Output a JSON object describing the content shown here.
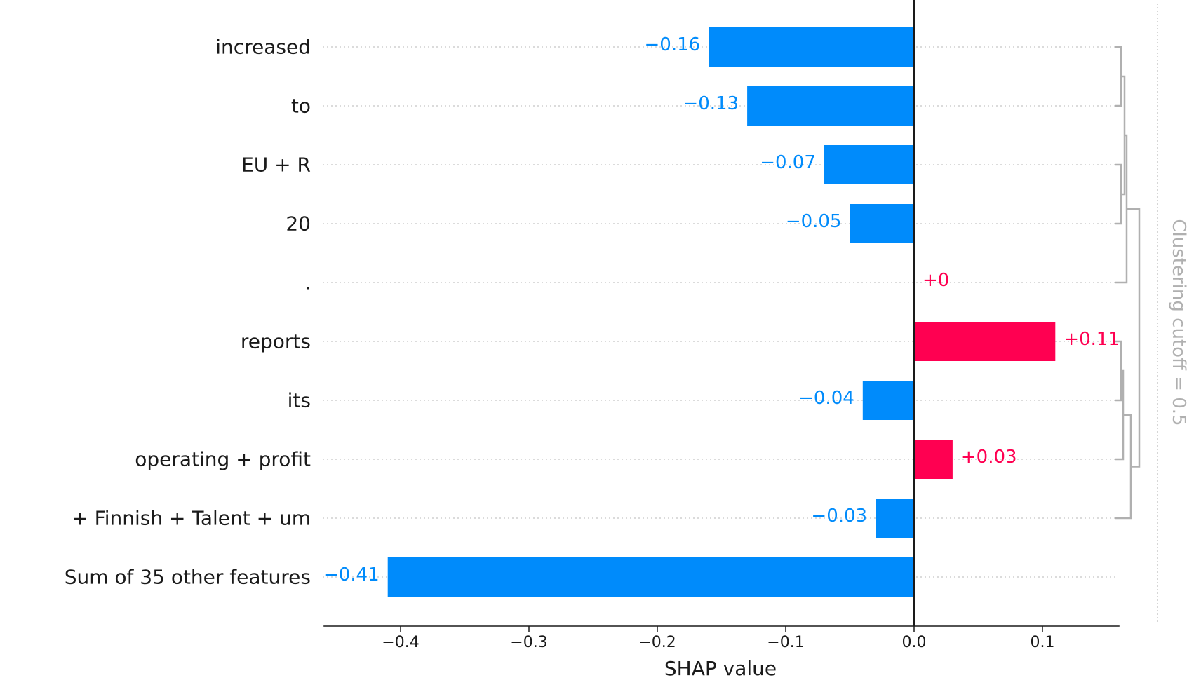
{
  "chart_data": {
    "type": "bar",
    "orientation": "horizontal",
    "categories": [
      "increased",
      "to",
      "EU + R",
      "20",
      ".",
      "reports",
      "its",
      "operating + profit",
      "+ Finnish + Talent + um",
      "Sum of 35 other features"
    ],
    "values": [
      -0.16,
      -0.13,
      -0.07,
      -0.05,
      0.0,
      0.11,
      -0.04,
      0.03,
      -0.03,
      -0.41
    ],
    "value_labels": [
      "−0.16",
      "−0.13",
      "−0.07",
      "−0.05",
      "+0",
      "+0.11",
      "−0.04",
      "+0.03",
      "−0.03",
      "−0.41"
    ],
    "xlabel": "SHAP value",
    "xlim": [
      -0.46,
      0.16
    ],
    "xticks": [
      -0.4,
      -0.3,
      -0.2,
      -0.1,
      0.0,
      0.1
    ],
    "xtick_labels": [
      "−0.4",
      "−0.3",
      "−0.2",
      "−0.1",
      "0.0",
      "0.1"
    ],
    "grid": "dotted horizontal row lines",
    "colors": {
      "negative": "#008bfb",
      "positive": "#ff0051",
      "cluster": "#b0b0b0"
    },
    "clustering_label": "Clustering cutoff = 0.5"
  }
}
